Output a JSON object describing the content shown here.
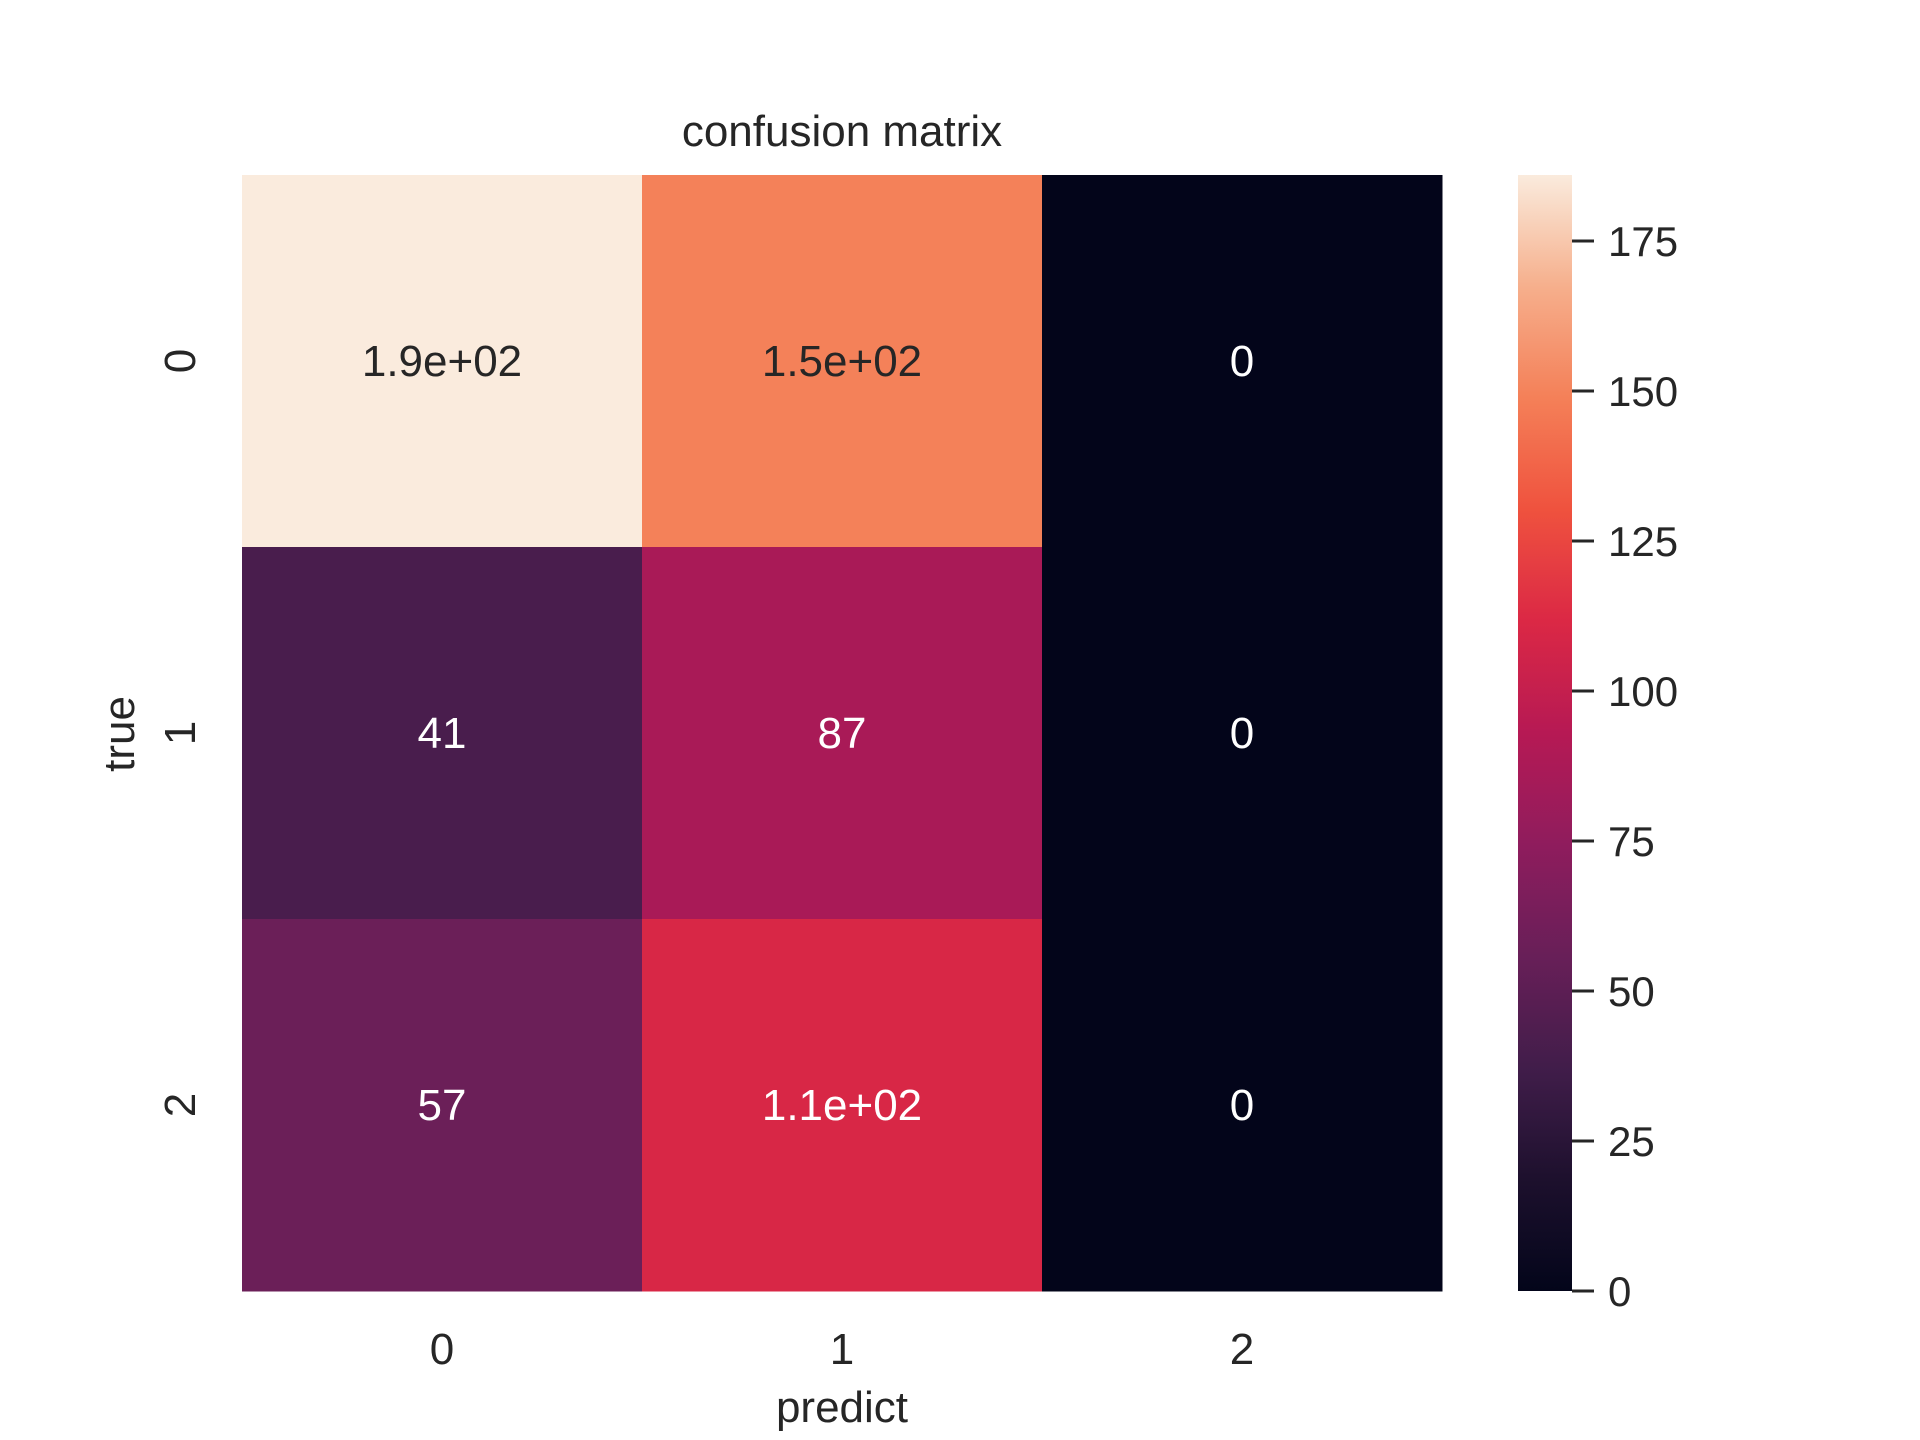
{
  "chart_data": {
    "type": "heatmap",
    "title": "confusion matrix",
    "xlabel": "predict",
    "ylabel": "true",
    "x_categories": [
      "0",
      "1",
      "2"
    ],
    "y_categories": [
      "0",
      "1",
      "2"
    ],
    "values": [
      [
        186,
        149,
        0
      ],
      [
        41,
        87,
        0
      ],
      [
        57,
        110,
        0
      ]
    ],
    "cell_labels": [
      [
        "1.9e+02",
        "1.5e+02",
        "0"
      ],
      [
        "41",
        "87",
        "0"
      ],
      [
        "57",
        "1.1e+02",
        "0"
      ]
    ],
    "colorbar": {
      "vmin": 0,
      "vmax": 186,
      "ticks": [
        0,
        25,
        50,
        75,
        100,
        125,
        150,
        175
      ],
      "tick_labels": [
        "0",
        "25",
        "50",
        "75",
        "100",
        "125",
        "150",
        "175"
      ]
    },
    "colormap": "rocket",
    "legend": "none",
    "grid": false
  }
}
